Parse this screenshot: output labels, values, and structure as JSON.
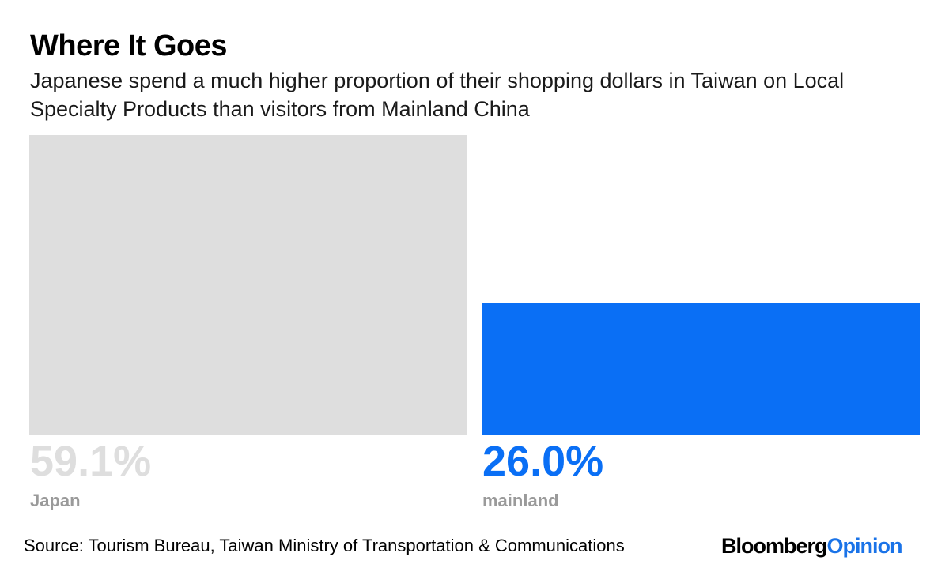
{
  "chart_data": {
    "type": "bar",
    "title": "Where It Goes",
    "subtitle": "Japanese spend a much higher proportion of their shopping dollars in Taiwan on Local Specialty Products than visitors from Mainland China",
    "categories": [
      "Japan",
      "mainland"
    ],
    "values": [
      59.1,
      26.0
    ],
    "value_labels": [
      "59.1%",
      "26.0%"
    ],
    "colors": [
      "#dedede",
      "#0a6ff5"
    ],
    "value_label_colors": [
      "#dedede",
      "#0a6ff5"
    ],
    "category_label_color": "#9a9a9a",
    "ylim": [
      0,
      59.1
    ],
    "grid": false,
    "legend": "none"
  },
  "source": "Source: Tourism Bureau, Taiwan Ministry of Transportation & Communications",
  "brand": {
    "part1": "Bloomberg",
    "part2": "Opinion"
  }
}
